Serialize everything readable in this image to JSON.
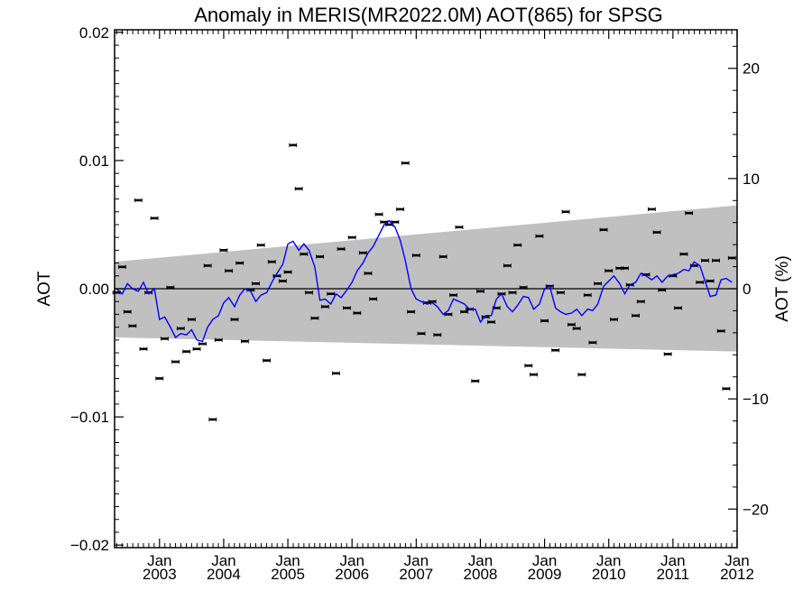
{
  "chart_data": {
    "type": "scatter",
    "title": "Anomaly in MERIS(MR2022.0M) AOT(865) for SPSG",
    "ylabel": "AOT",
    "ylabel_right": "AOT (%)",
    "x_range": [
      2002.3,
      2012.0
    ],
    "ylim": [
      -0.0202,
      0.0202
    ],
    "ylim_right": [
      -23.5,
      23.5
    ],
    "y_ticks": [
      {
        "value": 0.02,
        "label": "0.02"
      },
      {
        "value": 0.01,
        "label": "0.01"
      },
      {
        "value": 0.0,
        "label": "0.00"
      },
      {
        "value": -0.01,
        "label": "−0.01"
      },
      {
        "value": -0.02,
        "label": "−0.02"
      }
    ],
    "y_ticks_right": [
      {
        "value": 20,
        "label": "20"
      },
      {
        "value": 10,
        "label": "10"
      },
      {
        "value": 0,
        "label": "0"
      },
      {
        "value": -10,
        "label": "−10"
      },
      {
        "value": -20,
        "label": "−20"
      }
    ],
    "x_ticks": [
      {
        "value": 2003.0,
        "month": "Jan",
        "year": "2003"
      },
      {
        "value": 2004.0,
        "month": "Jan",
        "year": "2004"
      },
      {
        "value": 2005.0,
        "month": "Jan",
        "year": "2005"
      },
      {
        "value": 2006.0,
        "month": "Jan",
        "year": "2006"
      },
      {
        "value": 2007.0,
        "month": "Jan",
        "year": "2007"
      },
      {
        "value": 2008.0,
        "month": "Jan",
        "year": "2008"
      },
      {
        "value": 2009.0,
        "month": "Jan",
        "year": "2009"
      },
      {
        "value": 2010.0,
        "month": "Jan",
        "year": "2010"
      },
      {
        "value": 2011.0,
        "month": "Jan",
        "year": "2011"
      },
      {
        "value": 2012.0,
        "month": "Jan",
        "year": "2012"
      }
    ],
    "band": {
      "start": {
        "x": 2002.3,
        "upper": 0.0021,
        "lower": -0.0038
      },
      "end": {
        "x": 2012.0,
        "upper": 0.0065,
        "lower": -0.0049
      },
      "color": "#c0c0c0"
    },
    "points": [
      [
        2002.33,
        -0.0003
      ],
      [
        2002.42,
        0.0017
      ],
      [
        2002.5,
        -0.0018
      ],
      [
        2002.58,
        -0.0029
      ],
      [
        2002.67,
        0.0069
      ],
      [
        2002.75,
        -0.0047
      ],
      [
        2002.83,
        -0.0003
      ],
      [
        2002.92,
        0.0055
      ],
      [
        2003.0,
        -0.007
      ],
      [
        2003.08,
        -0.0039
      ],
      [
        2003.17,
        0.0001
      ],
      [
        2003.25,
        -0.0057
      ],
      [
        2003.33,
        -0.0031
      ],
      [
        2003.42,
        -0.0049
      ],
      [
        2003.5,
        -0.0024
      ],
      [
        2003.58,
        -0.0047
      ],
      [
        2003.67,
        -0.0043
      ],
      [
        2003.75,
        0.0018
      ],
      [
        2003.83,
        -0.0102
      ],
      [
        2003.92,
        -0.004
      ],
      [
        2004.0,
        0.003
      ],
      [
        2004.08,
        0.0014
      ],
      [
        2004.17,
        -0.0024
      ],
      [
        2004.25,
        0.002
      ],
      [
        2004.33,
        -0.0041
      ],
      [
        2004.42,
        -0.0001
      ],
      [
        2004.5,
        0.0004
      ],
      [
        2004.58,
        0.0034
      ],
      [
        2004.67,
        -0.0056
      ],
      [
        2004.75,
        0.0021
      ],
      [
        2004.83,
        0.001
      ],
      [
        2004.92,
        0.0006
      ],
      [
        2005.0,
        0.0013
      ],
      [
        2005.08,
        0.0112
      ],
      [
        2005.17,
        0.0078
      ],
      [
        2005.25,
        0.0027
      ],
      [
        2005.33,
        -0.0003
      ],
      [
        2005.42,
        -0.0023
      ],
      [
        2005.5,
        0.0025
      ],
      [
        2005.58,
        -0.0014
      ],
      [
        2005.67,
        -0.0004
      ],
      [
        2005.75,
        -0.0066
      ],
      [
        2005.83,
        0.0031
      ],
      [
        2005.92,
        -0.0015
      ],
      [
        2006.0,
        0.004
      ],
      [
        2006.08,
        -0.0019
      ],
      [
        2006.17,
        0.0028
      ],
      [
        2006.25,
        0.0012
      ],
      [
        2006.33,
        -0.0008
      ],
      [
        2006.42,
        0.0058
      ],
      [
        2006.5,
        0.0052
      ],
      [
        2006.58,
        0.005
      ],
      [
        2006.67,
        0.0052
      ],
      [
        2006.75,
        0.0062
      ],
      [
        2006.83,
        0.0098
      ],
      [
        2006.92,
        -0.0018
      ],
      [
        2007.0,
        0.0026
      ],
      [
        2007.08,
        -0.0035
      ],
      [
        2007.17,
        -0.0011
      ],
      [
        2007.25,
        -0.001
      ],
      [
        2007.33,
        -0.0036
      ],
      [
        2007.42,
        0.0025
      ],
      [
        2007.5,
        -0.002
      ],
      [
        2007.58,
        -0.0005
      ],
      [
        2007.67,
        0.0048
      ],
      [
        2007.75,
        -0.0018
      ],
      [
        2007.83,
        -0.0016
      ],
      [
        2007.92,
        -0.0072
      ],
      [
        2008.0,
        -0.0002
      ],
      [
        2008.08,
        -0.0022
      ],
      [
        2008.17,
        -0.0026
      ],
      [
        2008.25,
        -0.0015
      ],
      [
        2008.33,
        -0.0004
      ],
      [
        2008.42,
        0.0018
      ],
      [
        2008.5,
        -0.0003
      ],
      [
        2008.58,
        0.0034
      ],
      [
        2008.67,
        0.0001
      ],
      [
        2008.75,
        -0.006
      ],
      [
        2008.83,
        -0.0067
      ],
      [
        2008.92,
        0.0041
      ],
      [
        2009.0,
        -0.0025
      ],
      [
        2009.08,
        0.0002
      ],
      [
        2009.17,
        -0.0048
      ],
      [
        2009.25,
        -0.0003
      ],
      [
        2009.33,
        0.006
      ],
      [
        2009.42,
        -0.0028
      ],
      [
        2009.5,
        -0.0031
      ],
      [
        2009.58,
        -0.0067
      ],
      [
        2009.67,
        -0.0005
      ],
      [
        2009.75,
        -0.0042
      ],
      [
        2009.83,
        0.0004
      ],
      [
        2009.92,
        0.0046
      ],
      [
        2010.0,
        0.0014
      ],
      [
        2010.08,
        -0.0024
      ],
      [
        2010.17,
        0.0016
      ],
      [
        2010.25,
        0.0016
      ],
      [
        2010.33,
        0.0003
      ],
      [
        2010.42,
        -0.0021
      ],
      [
        2010.5,
        -0.001
      ],
      [
        2010.58,
        0.0011
      ],
      [
        2010.67,
        0.0062
      ],
      [
        2010.75,
        0.0044
      ],
      [
        2010.83,
        -0.0001
      ],
      [
        2010.92,
        -0.0051
      ],
      [
        2011.0,
        0.001
      ],
      [
        2011.08,
        -0.0015
      ],
      [
        2011.17,
        0.0027
      ],
      [
        2011.25,
        0.0059
      ],
      [
        2011.33,
        0.0018
      ],
      [
        2011.42,
        0.0005
      ],
      [
        2011.5,
        0.0022
      ],
      [
        2011.58,
        0.0006
      ],
      [
        2011.67,
        0.0022
      ],
      [
        2011.75,
        -0.0033
      ],
      [
        2011.83,
        -0.0078
      ],
      [
        2011.92,
        0.0024
      ]
    ],
    "series": [
      {
        "color": "#0000ff",
        "points": [
          [
            2002.33,
            0.0
          ],
          [
            2002.42,
            -0.0004
          ],
          [
            2002.5,
            0.0004
          ],
          [
            2002.58,
            0.0
          ],
          [
            2002.67,
            -0.0002
          ],
          [
            2002.75,
            0.0005
          ],
          [
            2002.83,
            -0.0004
          ],
          [
            2002.92,
            0.0
          ],
          [
            2003.0,
            -0.0024
          ],
          [
            2003.08,
            -0.0022
          ],
          [
            2003.17,
            -0.003
          ],
          [
            2003.25,
            -0.0038
          ],
          [
            2003.33,
            -0.0035
          ],
          [
            2003.42,
            -0.0036
          ],
          [
            2003.5,
            -0.0032
          ],
          [
            2003.58,
            -0.004
          ],
          [
            2003.67,
            -0.0041
          ],
          [
            2003.75,
            -0.003
          ],
          [
            2003.83,
            -0.0024
          ],
          [
            2003.92,
            -0.0021
          ],
          [
            2004.0,
            -0.0011
          ],
          [
            2004.08,
            -0.0007
          ],
          [
            2004.17,
            -0.0014
          ],
          [
            2004.25,
            -0.0005
          ],
          [
            2004.33,
            0.0
          ],
          [
            2004.42,
            -0.0002
          ],
          [
            2004.5,
            -0.001
          ],
          [
            2004.58,
            -0.0005
          ],
          [
            2004.67,
            -0.0003
          ],
          [
            2004.75,
            0.0005
          ],
          [
            2004.83,
            0.0012
          ],
          [
            2004.92,
            0.0019
          ],
          [
            2005.0,
            0.0035
          ],
          [
            2005.08,
            0.0037
          ],
          [
            2005.17,
            0.003
          ],
          [
            2005.25,
            0.0035
          ],
          [
            2005.33,
            0.003
          ],
          [
            2005.42,
            0.0017
          ],
          [
            2005.5,
            -0.0009
          ],
          [
            2005.58,
            -0.0008
          ],
          [
            2005.67,
            -0.0012
          ],
          [
            2005.75,
            -0.0004
          ],
          [
            2005.83,
            -0.0007
          ],
          [
            2005.92,
            -0.0001
          ],
          [
            2006.0,
            0.0005
          ],
          [
            2006.08,
            0.0014
          ],
          [
            2006.17,
            0.002
          ],
          [
            2006.25,
            0.0028
          ],
          [
            2006.33,
            0.0033
          ],
          [
            2006.42,
            0.0042
          ],
          [
            2006.5,
            0.005
          ],
          [
            2006.58,
            0.0053
          ],
          [
            2006.67,
            0.0048
          ],
          [
            2006.75,
            0.0038
          ],
          [
            2006.83,
            0.0022
          ],
          [
            2006.92,
            0.0
          ],
          [
            2007.0,
            -0.0008
          ],
          [
            2007.08,
            -0.001
          ],
          [
            2007.17,
            -0.0012
          ],
          [
            2007.25,
            -0.0011
          ],
          [
            2007.33,
            -0.0014
          ],
          [
            2007.42,
            -0.002
          ],
          [
            2007.5,
            -0.0017
          ],
          [
            2007.58,
            -0.0008
          ],
          [
            2007.67,
            -0.001
          ],
          [
            2007.75,
            -0.0012
          ],
          [
            2007.83,
            -0.0016
          ],
          [
            2007.92,
            -0.0016
          ],
          [
            2008.0,
            -0.0026
          ],
          [
            2008.08,
            -0.0021
          ],
          [
            2008.17,
            -0.0021
          ],
          [
            2008.25,
            -0.0008
          ],
          [
            2008.33,
            -0.0004
          ],
          [
            2008.42,
            -0.0014
          ],
          [
            2008.5,
            -0.0018
          ],
          [
            2008.58,
            -0.0013
          ],
          [
            2008.67,
            -0.0006
          ],
          [
            2008.75,
            -0.0007
          ],
          [
            2008.83,
            -0.0016
          ],
          [
            2008.92,
            -0.0012
          ],
          [
            2009.0,
            0.0
          ],
          [
            2009.08,
            0.0002
          ],
          [
            2009.17,
            -0.0015
          ],
          [
            2009.25,
            -0.0018
          ],
          [
            2009.33,
            -0.002
          ],
          [
            2009.42,
            -0.0019
          ],
          [
            2009.5,
            -0.0016
          ],
          [
            2009.58,
            -0.0021
          ],
          [
            2009.67,
            -0.0016
          ],
          [
            2009.75,
            -0.0017
          ],
          [
            2009.83,
            -0.0012
          ],
          [
            2009.92,
            0.0002
          ],
          [
            2010.0,
            0.0006
          ],
          [
            2010.08,
            0.001
          ],
          [
            2010.17,
            0.0004
          ],
          [
            2010.25,
            -0.0004
          ],
          [
            2010.33,
            0.0003
          ],
          [
            2010.42,
            0.0005
          ],
          [
            2010.5,
            0.0012
          ],
          [
            2010.58,
            0.001
          ],
          [
            2010.67,
            0.0007
          ],
          [
            2010.75,
            0.001
          ],
          [
            2010.83,
            0.0005
          ],
          [
            2010.92,
            0.001
          ],
          [
            2011.0,
            0.0011
          ],
          [
            2011.08,
            0.0012
          ],
          [
            2011.17,
            0.0015
          ],
          [
            2011.25,
            0.0014
          ],
          [
            2011.33,
            0.0021
          ],
          [
            2011.42,
            0.0018
          ],
          [
            2011.5,
            0.0006
          ],
          [
            2011.58,
            -0.0006
          ],
          [
            2011.67,
            -0.0005
          ],
          [
            2011.75,
            0.0007
          ],
          [
            2011.83,
            0.0008
          ],
          [
            2011.92,
            0.0005
          ]
        ]
      }
    ],
    "zero_line": 0,
    "grid": false,
    "legend": "none"
  }
}
